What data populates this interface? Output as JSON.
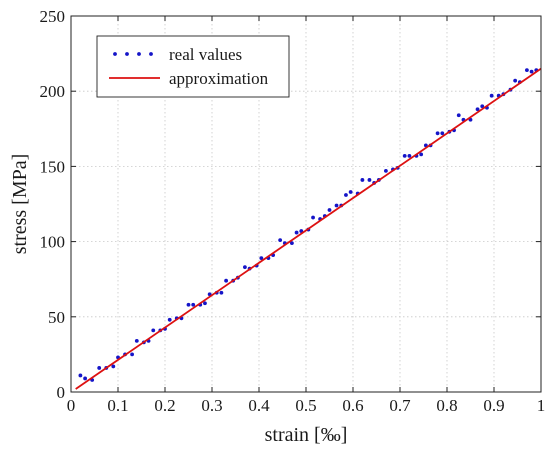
{
  "chart_data": {
    "type": "scatter",
    "xlabel": "strain [‰]",
    "ylabel": "stress [MPa]",
    "xlim": [
      0,
      1
    ],
    "ylim": [
      0,
      250
    ],
    "x_ticks": [
      "0",
      "0.1",
      "0.2",
      "0.3",
      "0.4",
      "0.5",
      "0.6",
      "0.7",
      "0.8",
      "0.9",
      "1"
    ],
    "y_ticks": [
      "0",
      "50",
      "100",
      "150",
      "200",
      "250"
    ],
    "grid": true,
    "legend_position": "top-left",
    "series": [
      {
        "name": "real values",
        "style": "points",
        "color": "#1515c8",
        "points": [
          [
            0.02,
            11
          ],
          [
            0.03,
            9
          ],
          [
            0.045,
            8
          ],
          [
            0.06,
            16
          ],
          [
            0.075,
            16
          ],
          [
            0.09,
            17
          ],
          [
            0.1,
            23
          ],
          [
            0.115,
            25
          ],
          [
            0.13,
            25
          ],
          [
            0.14,
            34
          ],
          [
            0.155,
            33
          ],
          [
            0.165,
            34
          ],
          [
            0.175,
            41
          ],
          [
            0.19,
            41
          ],
          [
            0.2,
            42
          ],
          [
            0.21,
            48
          ],
          [
            0.225,
            49
          ],
          [
            0.235,
            49
          ],
          [
            0.25,
            58
          ],
          [
            0.26,
            58
          ],
          [
            0.275,
            58
          ],
          [
            0.285,
            59
          ],
          [
            0.295,
            65
          ],
          [
            0.31,
            66
          ],
          [
            0.32,
            66
          ],
          [
            0.33,
            74
          ],
          [
            0.345,
            74
          ],
          [
            0.355,
            76
          ],
          [
            0.37,
            83
          ],
          [
            0.38,
            82
          ],
          [
            0.395,
            84
          ],
          [
            0.405,
            89
          ],
          [
            0.42,
            89
          ],
          [
            0.43,
            91
          ],
          [
            0.445,
            101
          ],
          [
            0.455,
            99
          ],
          [
            0.47,
            99
          ],
          [
            0.48,
            106
          ],
          [
            0.49,
            107
          ],
          [
            0.505,
            108
          ],
          [
            0.515,
            116
          ],
          [
            0.53,
            115
          ],
          [
            0.54,
            117
          ],
          [
            0.55,
            121
          ],
          [
            0.565,
            124
          ],
          [
            0.575,
            124
          ],
          [
            0.585,
            131
          ],
          [
            0.595,
            133
          ],
          [
            0.61,
            132
          ],
          [
            0.62,
            141
          ],
          [
            0.635,
            141
          ],
          [
            0.645,
            139
          ],
          [
            0.655,
            141
          ],
          [
            0.67,
            147
          ],
          [
            0.685,
            148
          ],
          [
            0.695,
            149
          ],
          [
            0.71,
            157
          ],
          [
            0.72,
            157
          ],
          [
            0.735,
            157
          ],
          [
            0.745,
            158
          ],
          [
            0.755,
            164
          ],
          [
            0.765,
            164
          ],
          [
            0.78,
            172
          ],
          [
            0.79,
            172
          ],
          [
            0.805,
            173
          ],
          [
            0.815,
            174
          ],
          [
            0.825,
            184
          ],
          [
            0.835,
            181
          ],
          [
            0.85,
            181
          ],
          [
            0.865,
            188
          ],
          [
            0.875,
            190
          ],
          [
            0.885,
            189
          ],
          [
            0.895,
            197
          ],
          [
            0.91,
            197
          ],
          [
            0.92,
            198
          ],
          [
            0.935,
            201
          ],
          [
            0.945,
            207
          ],
          [
            0.955,
            206
          ],
          [
            0.97,
            214
          ],
          [
            0.98,
            213
          ],
          [
            0.99,
            214
          ]
        ]
      },
      {
        "name": "approximation",
        "style": "line",
        "color": "#dd1111",
        "points": [
          [
            0.01,
            2
          ],
          [
            1.0,
            215
          ]
        ]
      }
    ]
  }
}
